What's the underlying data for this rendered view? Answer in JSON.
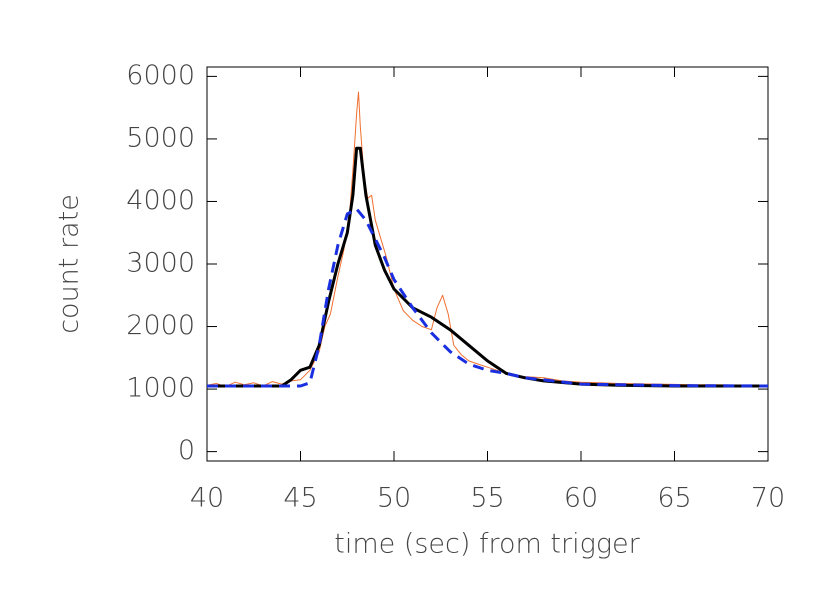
{
  "chart_data": {
    "type": "line",
    "x_label": "time (sec) from trigger",
    "y_label": "count rate",
    "xlim": [
      40,
      70
    ],
    "xticks": [
      40,
      45,
      50,
      55,
      60,
      65,
      70
    ],
    "ylim": [
      -150,
      6150
    ],
    "yticks": [
      0,
      1000,
      2000,
      3000,
      4000,
      5000,
      6000
    ],
    "series": [
      {
        "color": "#f07030",
        "dash": false,
        "width": 1,
        "x": [
          40,
          40.5,
          41,
          41.5,
          42,
          42.5,
          43,
          43.5,
          44,
          44.5,
          45,
          45.5,
          46,
          46.3,
          46.6,
          47,
          47.3,
          47.6,
          47.8,
          48,
          48.1,
          48.2,
          48.4,
          48.6,
          48.8,
          49,
          49.3,
          49.6,
          50,
          50.5,
          51,
          51.5,
          52,
          52.3,
          52.6,
          52.9,
          53.2,
          53.6,
          54,
          54.5,
          55,
          55.5,
          56,
          56.5,
          57,
          58,
          59,
          60,
          61,
          62,
          63,
          64,
          65,
          66,
          67,
          68,
          69,
          70
        ],
        "values": [
          1060,
          1090,
          1040,
          1110,
          1070,
          1100,
          1050,
          1120,
          1080,
          1130,
          1150,
          1300,
          1600,
          2000,
          2200,
          2800,
          3200,
          3700,
          4500,
          5400,
          5750,
          5200,
          4400,
          4050,
          4100,
          3700,
          3400,
          3100,
          2600,
          2250,
          2100,
          2000,
          1950,
          2300,
          2500,
          2200,
          1700,
          1550,
          1450,
          1400,
          1350,
          1300,
          1250,
          1220,
          1200,
          1180,
          1130,
          1110,
          1100,
          1090,
          1085,
          1080,
          1075,
          1070,
          1068,
          1065,
          1062,
          1060
        ]
      },
      {
        "color": "#000000",
        "dash": false,
        "width": 3,
        "x": [
          40,
          42,
          44,
          44.5,
          45,
          45.5,
          46,
          46.5,
          47,
          47.5,
          47.8,
          48,
          48.2,
          48.5,
          49,
          49.5,
          50,
          51,
          52,
          53,
          54,
          55,
          56,
          57,
          58,
          60,
          62,
          65,
          70
        ],
        "values": [
          1050,
          1050,
          1050,
          1150,
          1300,
          1350,
          1700,
          2400,
          3000,
          3500,
          4100,
          4850,
          4850,
          4100,
          3300,
          2900,
          2600,
          2300,
          2150,
          1950,
          1700,
          1450,
          1250,
          1180,
          1130,
          1080,
          1060,
          1050,
          1050
        ]
      },
      {
        "color": "#1a2fe0",
        "dash": true,
        "width": 3,
        "x": [
          40,
          42,
          44,
          45,
          45.5,
          46,
          46.5,
          47,
          47.5,
          48,
          48.5,
          49,
          49.5,
          50,
          51,
          52,
          53,
          54,
          55,
          56,
          57,
          60,
          65,
          70
        ],
        "values": [
          1050,
          1050,
          1050,
          1050,
          1100,
          1700,
          2600,
          3300,
          3800,
          3880,
          3700,
          3400,
          3100,
          2750,
          2300,
          1900,
          1600,
          1400,
          1300,
          1250,
          1180,
          1080,
          1055,
          1050
        ]
      }
    ]
  }
}
